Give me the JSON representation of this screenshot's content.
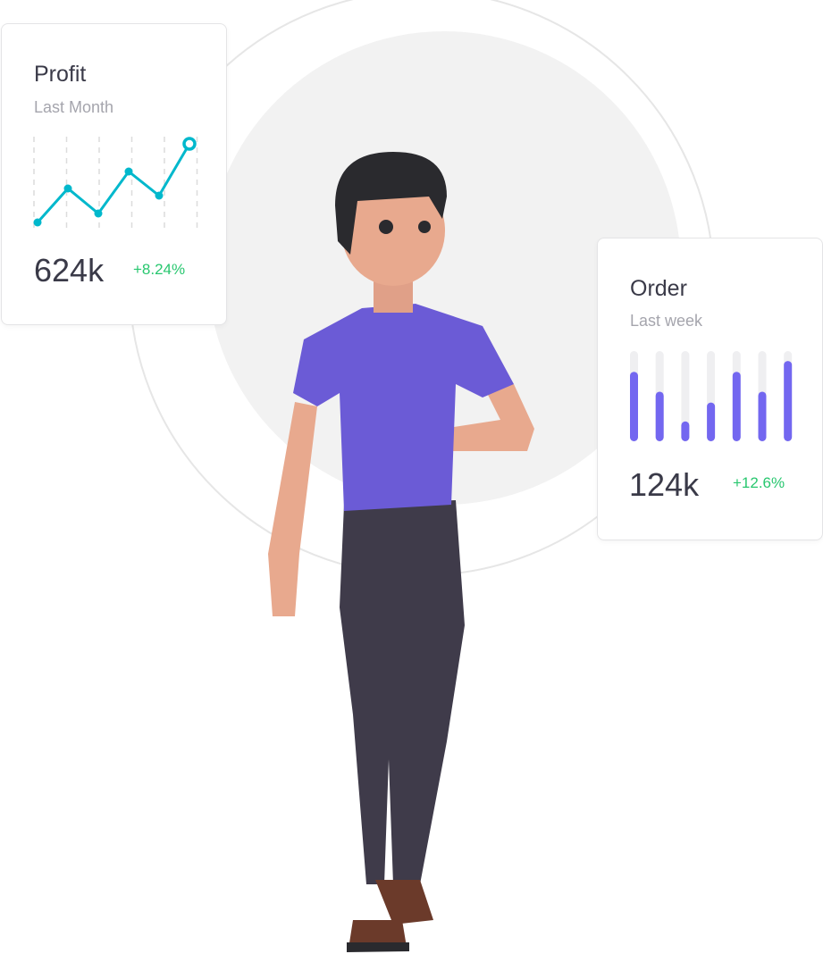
{
  "profit_card": {
    "title": "Profit",
    "subtitle": "Last Month",
    "value": "624k",
    "change": "+8.24%",
    "line_color": "#00b8cc",
    "change_color": "#28c76f",
    "chart_data": {
      "type": "line",
      "values": [
        0.04,
        0.42,
        0.14,
        0.61,
        0.34,
        0.92
      ],
      "ylim": [
        0,
        1
      ],
      "grid": "vertical-dashed"
    }
  },
  "order_card": {
    "title": "Order",
    "subtitle": "Last week",
    "value": "124k",
    "change": "+12.6%",
    "bar_color": "#7367f0",
    "change_color": "#28c76f",
    "chart_data": {
      "type": "bar",
      "values": [
        0.77,
        0.55,
        0.22,
        0.43,
        0.77,
        0.55,
        0.89
      ],
      "ylim": [
        0,
        1
      ]
    }
  },
  "illustration": {
    "shirt_color": "#6b5bd6",
    "pants_color": "#3f3b4a",
    "skin_color": "#e8a98e",
    "hair_color": "#2a2a2e"
  }
}
